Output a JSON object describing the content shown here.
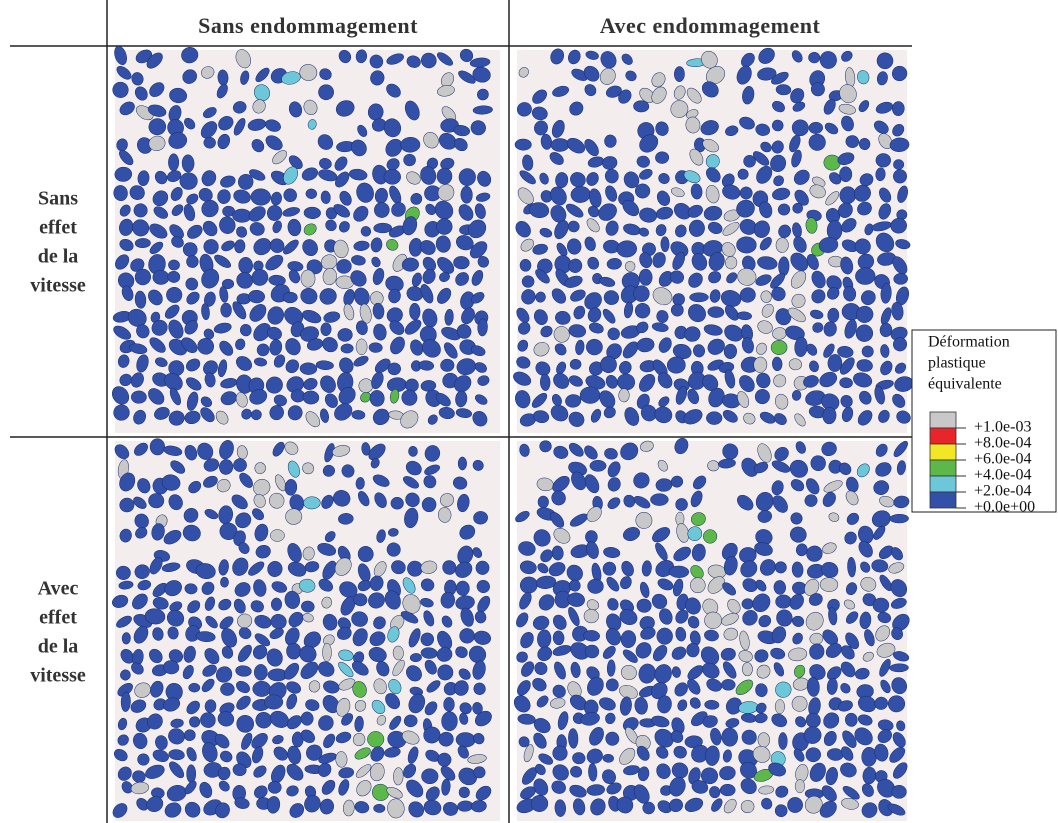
{
  "table": {
    "columns": [
      "Sans endommagement",
      "Avec endommagement"
    ],
    "rows": [
      [
        "Sans",
        "effet",
        "de la",
        "vitesse"
      ],
      [
        "Avec",
        "effet",
        "de la",
        "vitesse"
      ]
    ]
  },
  "legend": {
    "title": [
      "Déformation",
      "plastique",
      "équivalente"
    ],
    "entries": [
      {
        "label": "+1.0e-03",
        "color": "#c8c8c8"
      },
      {
        "label": "+8.0e-04",
        "color": "#e8262a"
      },
      {
        "label": "+6.0e-04",
        "color": "#f2e625"
      },
      {
        "label": "+4.0e-04",
        "color": "#5cb848"
      },
      {
        "label": "+2.0e-04",
        "color": "#6cc8d8"
      },
      {
        "label": "+0.0e+00",
        "color": "#3350a8"
      }
    ]
  }
}
